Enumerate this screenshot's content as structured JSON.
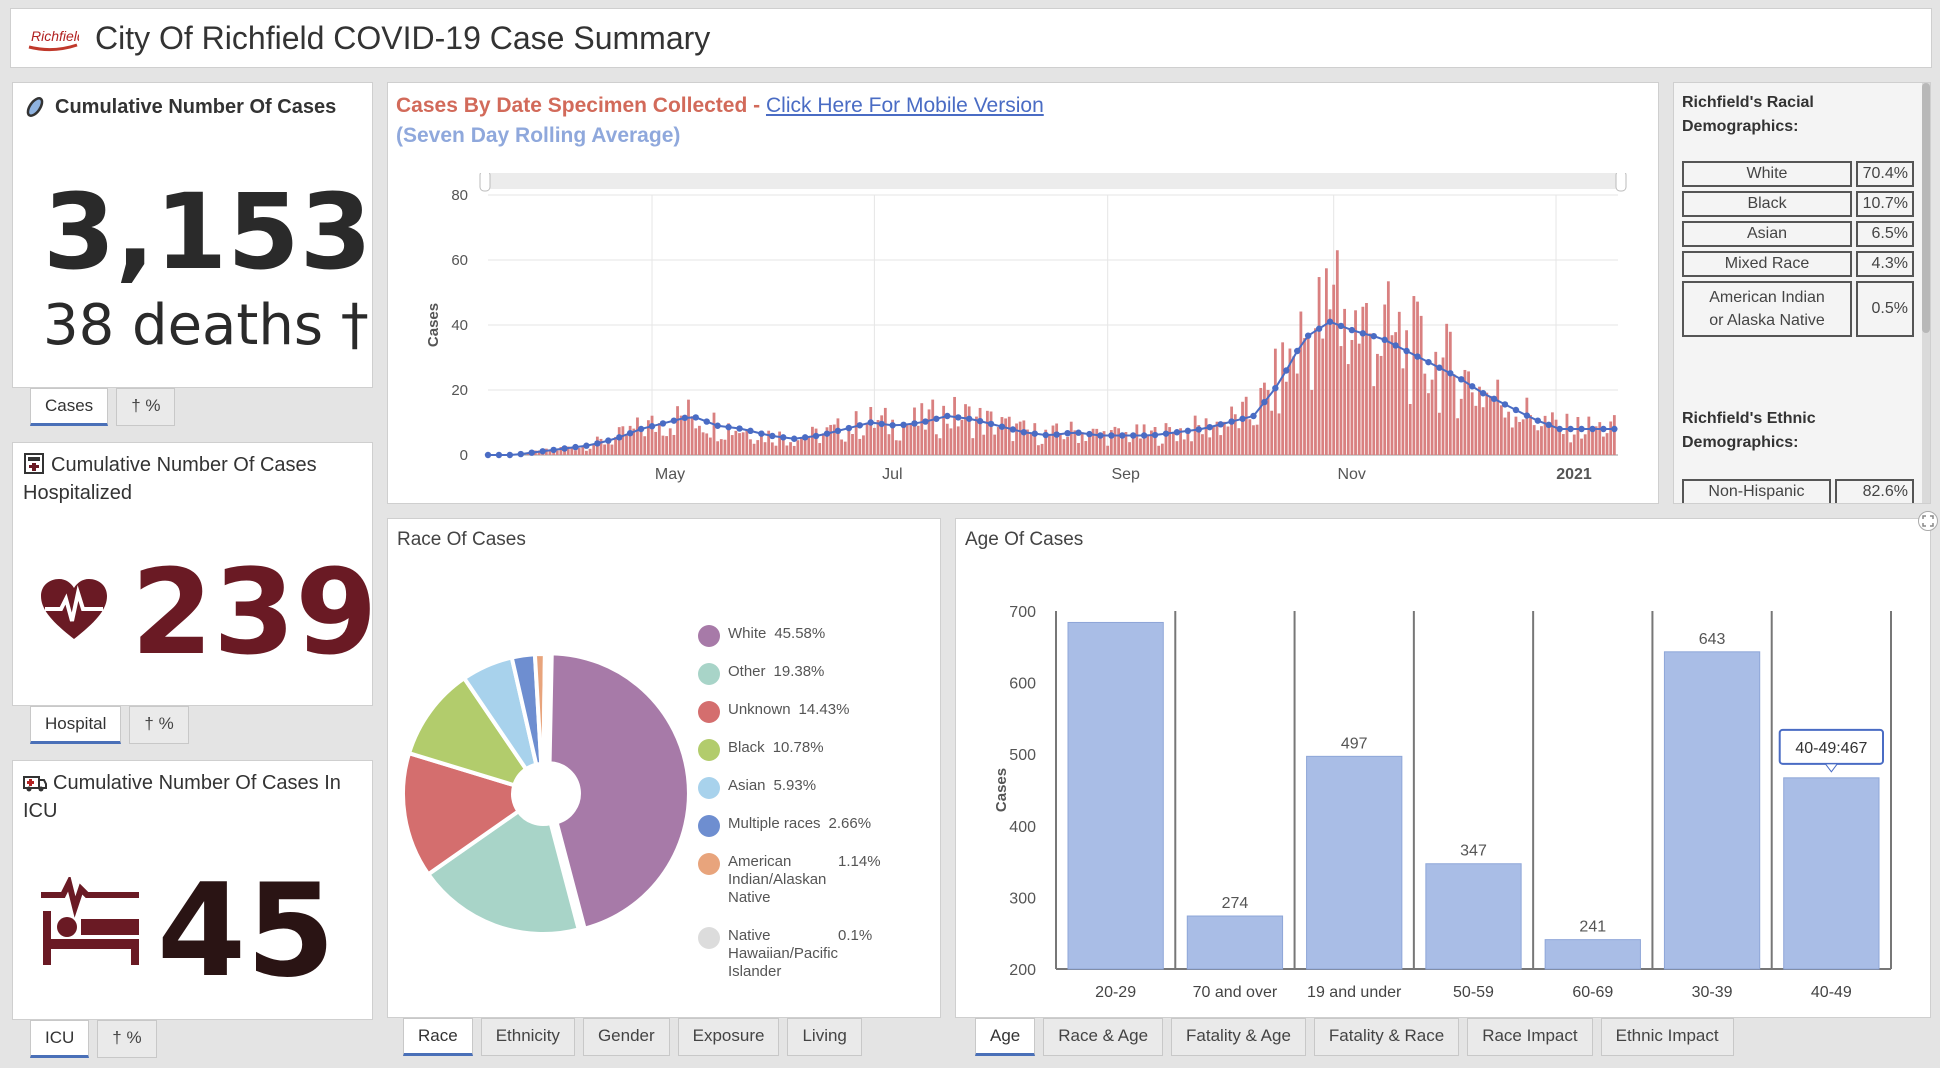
{
  "header": {
    "title": "City Of Richfield COVID-19 Case Summary",
    "logo_text": "Richfield"
  },
  "cases_card": {
    "title": "Cumulative Number Of Cases",
    "count": "3,153",
    "deaths": "38 deaths †",
    "tabs": [
      "Cases",
      "† %"
    ]
  },
  "hospital_card": {
    "title": "Cumulative Number Of Cases Hospitalized",
    "count": "239",
    "tabs": [
      "Hospital",
      "† %"
    ]
  },
  "icu_card": {
    "title": "Cumulative Number Of Cases In ICU",
    "count": "45",
    "tabs": [
      "ICU",
      "† %"
    ]
  },
  "timeline": {
    "title_red": "Cases By Date Specimen Collected - ",
    "link": "Click Here For Mobile Version",
    "subtitle": "(Seven Day Rolling Average)"
  },
  "demographics": {
    "racial_title": "Richfield's Racial Demographics:",
    "racial_rows": [
      {
        "label": "White",
        "value": "70.4%"
      },
      {
        "label": "Black",
        "value": "10.7%"
      },
      {
        "label": "Asian",
        "value": "6.5%"
      },
      {
        "label": "Mixed Race",
        "value": "4.3%"
      },
      {
        "label": "American Indian or Alaska Native",
        "value": "0.5%"
      }
    ],
    "ethnic_title": "Richfield's Ethnic Demographics:",
    "ethnic_rows": [
      {
        "label": "Non-Hispanic",
        "value": "82.6%"
      }
    ]
  },
  "race_panel": {
    "title": "Race Of Cases",
    "tabs": [
      "Race",
      "Ethnicity",
      "Gender",
      "Exposure",
      "Living"
    ]
  },
  "age_panel": {
    "title": "Age Of Cases",
    "tabs": [
      "Age",
      "Race & Age",
      "Fatality & Age",
      "Fatality & Race",
      "Race Impact",
      "Ethnic Impact"
    ],
    "tooltip": "40-49:467"
  },
  "colors": {
    "cases_bar": "#d98080",
    "rolling_avg": "#4a6cc4",
    "big_number": "#2a2a2a",
    "hospital_number": "#6a1a24",
    "age_bar": "#a9bde6"
  },
  "chart_data": [
    {
      "type": "bar",
      "title": "Cases By Date Specimen Collected (Seven Day Rolling Average)",
      "xlabel": "",
      "ylabel": "Cases",
      "ylim": [
        0,
        80
      ],
      "yticks": [
        0,
        20,
        40,
        60,
        80
      ],
      "x_tick_labels": [
        "May",
        "Jul",
        "Sep",
        "Nov",
        "2021"
      ],
      "x_ticks_day": [
        45,
        106,
        170,
        232,
        293
      ],
      "series": [
        {
          "name": "Daily cases",
          "values_by_week": [
            0,
            0,
            1,
            2,
            3,
            5,
            8,
            10,
            12,
            9,
            8,
            6,
            5,
            6,
            8,
            10,
            9,
            10,
            12,
            11,
            9,
            7,
            6,
            7,
            6,
            6,
            6,
            7,
            8,
            10,
            12,
            22,
            36,
            41,
            38,
            36,
            32,
            28,
            24,
            19,
            15,
            11,
            8
          ]
        },
        {
          "name": "Seven day rolling average",
          "values_by_week": [
            0,
            0,
            1,
            2,
            3,
            5,
            8,
            10,
            12,
            9,
            8,
            6,
            5,
            6,
            8,
            10,
            9,
            10,
            12,
            11,
            9,
            7,
            6,
            7,
            6,
            6,
            6,
            7,
            8,
            10,
            12,
            22,
            36,
            41,
            38,
            36,
            32,
            28,
            24,
            19,
            15,
            11,
            8
          ]
        }
      ]
    },
    {
      "type": "pie",
      "title": "Race Of Cases",
      "categories": [
        "White",
        "Other",
        "Unknown",
        "Black",
        "Asian",
        "Multiple races",
        "American Indian/Alaskan Native",
        "Native Hawaiian/Pacific Islander"
      ],
      "values": [
        45.58,
        19.38,
        14.43,
        10.78,
        5.93,
        2.66,
        1.14,
        0.1
      ],
      "labels": [
        "45.58%",
        "19.38%",
        "14.43%",
        "10.78%",
        "5.93%",
        "2.66%",
        "1.14%",
        "0.1%"
      ],
      "colors": [
        "#a77aa8",
        "#a8d4c8",
        "#d46e6e",
        "#b2cc6c",
        "#a8d2ec",
        "#6e8ed0",
        "#e8a47c",
        "#dcdcdc"
      ]
    },
    {
      "type": "bar",
      "title": "Age Of Cases",
      "xlabel": "",
      "ylabel": "Cases",
      "ylim": [
        200,
        700
      ],
      "yticks": [
        200,
        300,
        400,
        500,
        600,
        700
      ],
      "categories": [
        "20-29",
        "70 and over",
        "19 and under",
        "50-59",
        "60-69",
        "30-39",
        "40-49"
      ],
      "values": [
        684,
        274,
        497,
        347,
        241,
        643,
        467
      ],
      "value_labels": [
        "",
        "274",
        "497",
        "347",
        "241",
        "643",
        ""
      ]
    }
  ]
}
